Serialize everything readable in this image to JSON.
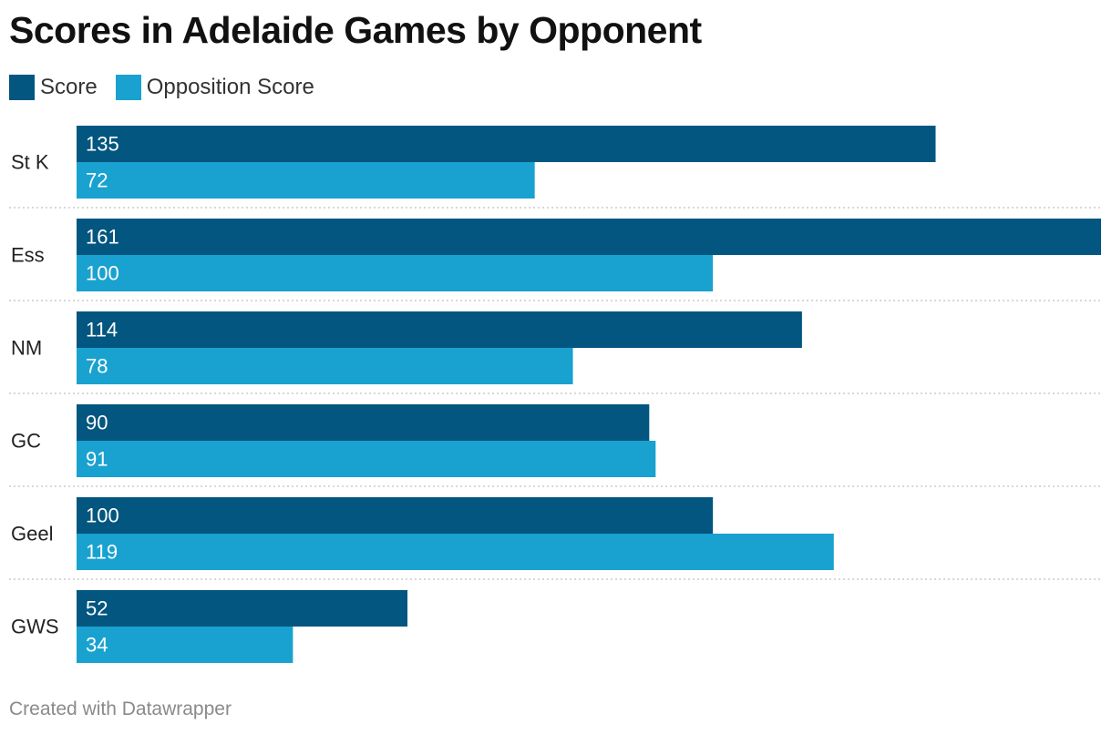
{
  "title": "Scores in Adelaide Games by Opponent",
  "footer": "Created with Datawrapper",
  "colors": {
    "score": "#02567f",
    "opposition": "#19a2d0",
    "separator": "#cccccc"
  },
  "chart_data": {
    "type": "bar",
    "orientation": "horizontal",
    "categories": [
      "St K",
      "Ess",
      "NM",
      "GC",
      "Geel",
      "GWS"
    ],
    "series": [
      {
        "name": "Score",
        "values": [
          135,
          161,
          114,
          90,
          100,
          52
        ]
      },
      {
        "name": "Opposition Score",
        "values": [
          72,
          100,
          78,
          91,
          119,
          34
        ]
      }
    ],
    "xlim": [
      0,
      161
    ],
    "legend": "top-left",
    "grid": false,
    "data_labels": "inside-start"
  }
}
